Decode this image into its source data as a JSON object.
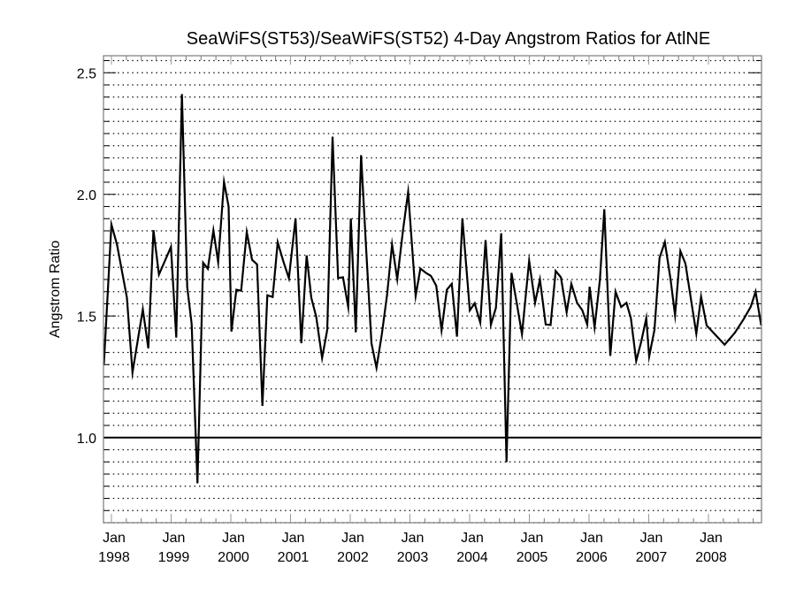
{
  "chart_data": {
    "type": "line",
    "title": "SeaWiFS(ST53)/SeaWiFS(ST52) 4-Day Angstrom Ratios for AtlNE",
    "xlabel": "",
    "ylabel": "Angstrom Ratio",
    "xlim": [
      1997.867,
      2008.889
    ],
    "ylim": [
      0.65,
      2.57
    ],
    "grid": true,
    "grid_step": 0.05,
    "reference_line": 1.0,
    "legend": "none",
    "yticks": [
      {
        "value": 1.0,
        "label": "1.0"
      },
      {
        "value": 1.5,
        "label": "1.5"
      },
      {
        "value": 2.0,
        "label": "2.0"
      },
      {
        "value": 2.5,
        "label": "2.5"
      }
    ],
    "xticks": [
      {
        "value": 1998,
        "label_top": "Jan",
        "label_bottom": "1998"
      },
      {
        "value": 1999,
        "label_top": "Jan",
        "label_bottom": "1999"
      },
      {
        "value": 2000,
        "label_top": "Jan",
        "label_bottom": "2000"
      },
      {
        "value": 2001,
        "label_top": "Jan",
        "label_bottom": "2001"
      },
      {
        "value": 2002,
        "label_top": "Jan",
        "label_bottom": "2002"
      },
      {
        "value": 2003,
        "label_top": "Jan",
        "label_bottom": "2003"
      },
      {
        "value": 2004,
        "label_top": "Jan",
        "label_bottom": "2004"
      },
      {
        "value": 2005,
        "label_top": "Jan",
        "label_bottom": "2005"
      },
      {
        "value": 2006,
        "label_top": "Jan",
        "label_bottom": "2006"
      },
      {
        "value": 2007,
        "label_top": "Jan",
        "label_bottom": "2007"
      },
      {
        "value": 2008,
        "label_top": "Jan",
        "label_bottom": "2008"
      }
    ],
    "series": [
      {
        "name": "Angstrom Ratio",
        "color": "#000000",
        "x": [
          1997.874,
          1998.0,
          1998.093,
          1998.259,
          1998.353,
          1998.526,
          1998.618,
          1998.704,
          1998.796,
          1998.997,
          1999.086,
          1999.181,
          1999.27,
          1999.344,
          1999.441,
          1999.536,
          1999.615,
          1999.708,
          1999.788,
          1999.886,
          1999.963,
          2000.01,
          2000.093,
          2000.173,
          2000.267,
          2000.356,
          2000.44,
          2000.529,
          2000.612,
          2000.701,
          2000.785,
          2000.884,
          2000.973,
          2001.084,
          2001.181,
          2001.27,
          2001.348,
          2001.43,
          2001.529,
          2001.615,
          2001.704,
          2001.797,
          2001.879,
          2001.966,
          2002.01,
          2002.093,
          2002.182,
          2002.271,
          2002.356,
          2002.44,
          2002.529,
          2002.618,
          2002.701,
          2002.788,
          2002.884,
          2002.97,
          2003.096,
          2003.175,
          2003.269,
          2003.351,
          2003.441,
          2003.53,
          2003.618,
          2003.701,
          2003.788,
          2003.879,
          2004.003,
          2004.084,
          2004.178,
          2004.267,
          2004.356,
          2004.44,
          2004.529,
          2004.618,
          2004.701,
          2004.79,
          2004.877,
          2004.997,
          2005.096,
          2005.178,
          2005.274,
          2005.356,
          2005.441,
          2005.529,
          2005.625,
          2005.704,
          2005.8,
          2005.886,
          2005.97,
          2006.01,
          2006.093,
          2006.182,
          2006.256,
          2006.356,
          2006.444,
          2006.538,
          2006.627,
          2006.701,
          2006.79,
          2006.874,
          2006.959,
          2007.007,
          2007.096,
          2007.181,
          2007.27,
          2007.367,
          2007.441,
          2007.53,
          2007.615,
          2007.797,
          2007.877,
          2007.97,
          2008.271,
          2008.44,
          2008.593,
          2008.711,
          2008.79,
          2008.884
        ],
        "y": [
          1.303,
          1.876,
          1.794,
          1.576,
          1.268,
          1.527,
          1.367,
          1.853,
          1.67,
          1.784,
          1.411,
          2.412,
          1.618,
          1.467,
          0.812,
          1.719,
          1.694,
          1.852,
          1.721,
          2.051,
          1.95,
          1.436,
          1.608,
          1.604,
          1.845,
          1.731,
          1.712,
          1.13,
          1.585,
          1.578,
          1.803,
          1.721,
          1.655,
          1.901,
          1.388,
          1.749,
          1.575,
          1.497,
          1.327,
          1.443,
          2.237,
          1.656,
          1.659,
          1.537,
          1.901,
          1.433,
          2.161,
          1.757,
          1.388,
          1.287,
          1.424,
          1.588,
          1.794,
          1.651,
          1.852,
          2.01,
          1.582,
          1.695,
          1.677,
          1.665,
          1.624,
          1.441,
          1.608,
          1.632,
          1.415,
          1.901,
          1.523,
          1.552,
          1.473,
          1.812,
          1.464,
          1.533,
          1.84,
          0.899,
          1.677,
          1.552,
          1.425,
          1.727,
          1.554,
          1.65,
          1.465,
          1.463,
          1.685,
          1.659,
          1.515,
          1.632,
          1.554,
          1.524,
          1.465,
          1.62,
          1.453,
          1.648,
          1.939,
          1.336,
          1.6,
          1.537,
          1.554,
          1.491,
          1.315,
          1.394,
          1.491,
          1.333,
          1.443,
          1.739,
          1.804,
          1.648,
          1.503,
          1.767,
          1.715,
          1.427,
          1.579,
          1.461,
          1.382,
          1.43,
          1.488,
          1.539,
          1.6,
          1.461
        ]
      }
    ]
  }
}
